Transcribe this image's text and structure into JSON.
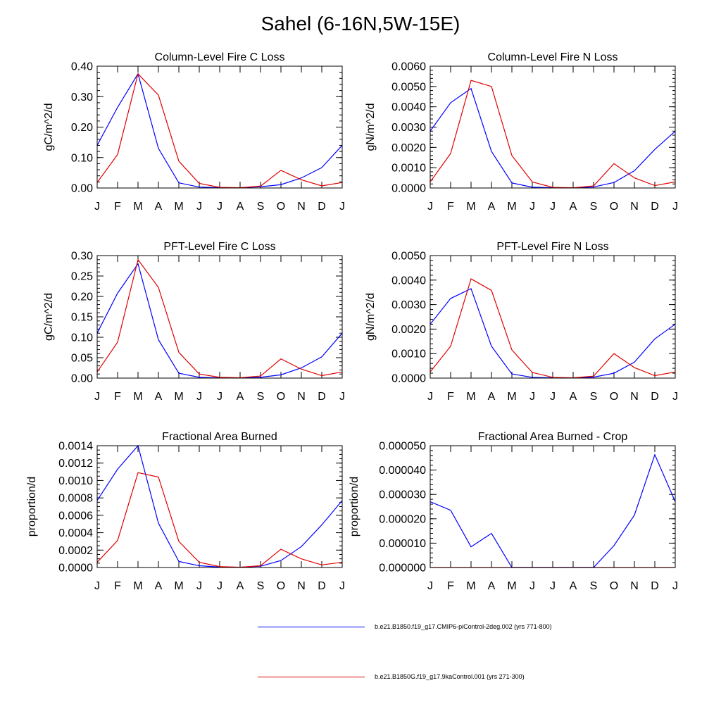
{
  "title": "Sahel (6-16N,5W-15E)",
  "colors": {
    "blue": "#0000ff",
    "red": "#e00000",
    "axis": "#000000"
  },
  "legend": [
    {
      "label": "b.e21.B1850.f19_g17.CMIP6-piControl-2deg.002 (yrs 771-800)",
      "color": "#0000ff"
    },
    {
      "label": "b.e21.B1850G.f19_g17.9kaControl.001 (yrs 271-300)",
      "color": "#e00000"
    }
  ],
  "chart_data": [
    {
      "type": "line",
      "title": "Column-Level Fire C Loss",
      "ylabel": "gC/m^2/d",
      "categories": [
        "J",
        "F",
        "M",
        "A",
        "M",
        "J",
        "J",
        "A",
        "S",
        "O",
        "N",
        "D",
        "J"
      ],
      "ylim": [
        0,
        0.4
      ],
      "yticks": [
        "0.00",
        "0.10",
        "0.20",
        "0.30",
        "0.40"
      ],
      "yminor": 0.02,
      "series": [
        {
          "name": "b.e21.B1850.f19_g17.CMIP6-piControl-2deg.002 (yrs 771-800)",
          "color": "#0000ff",
          "values": [
            0.14,
            0.265,
            0.375,
            0.13,
            0.017,
            0.003,
            0.001,
            0.001,
            0.004,
            0.011,
            0.033,
            0.067,
            0.14
          ]
        },
        {
          "name": "b.e21.B1850G.f19_g17.9kaControl.001 (yrs 271-300)",
          "color": "#e00000",
          "values": [
            0.018,
            0.11,
            0.375,
            0.305,
            0.088,
            0.015,
            0.002,
            0.001,
            0.006,
            0.058,
            0.027,
            0.007,
            0.018
          ]
        }
      ]
    },
    {
      "type": "line",
      "title": "Column-Level Fire N Loss",
      "ylabel": "gN/m^2/d",
      "categories": [
        "J",
        "F",
        "M",
        "A",
        "M",
        "J",
        "J",
        "A",
        "S",
        "O",
        "N",
        "D",
        "J"
      ],
      "ylim": [
        0,
        0.006
      ],
      "yticks": [
        "0.0000",
        "0.0010",
        "0.0020",
        "0.0030",
        "0.0040",
        "0.0050",
        "0.0060"
      ],
      "yminor": 0.0002,
      "series": [
        {
          "name": "b.e21.B1850.f19_g17.CMIP6-piControl-2deg.002 (yrs 771-800)",
          "color": "#0000ff",
          "values": [
            0.0028,
            0.0042,
            0.0049,
            0.0018,
            0.00025,
            4e-05,
            1e-05,
            1e-05,
            5e-05,
            0.00027,
            0.00085,
            0.0019,
            0.0028
          ]
        },
        {
          "name": "b.e21.B1850G.f19_g17.9kaControl.001 (yrs 271-300)",
          "color": "#e00000",
          "values": [
            0.0003,
            0.0017,
            0.0053,
            0.005,
            0.0016,
            0.0003,
            3e-05,
            1e-05,
            0.0001,
            0.0012,
            0.0005,
            0.00012,
            0.0003
          ]
        }
      ]
    },
    {
      "type": "line",
      "title": "PFT-Level Fire C Loss",
      "ylabel": "gC/m^2/d",
      "categories": [
        "J",
        "F",
        "M",
        "A",
        "M",
        "J",
        "J",
        "A",
        "S",
        "O",
        "N",
        "D",
        "J"
      ],
      "ylim": [
        0,
        0.3
      ],
      "yticks": [
        "0.00",
        "0.05",
        "0.10",
        "0.15",
        "0.20",
        "0.25",
        "0.30"
      ],
      "yminor": 0.01,
      "series": [
        {
          "name": "b.e21.B1850.f19_g17.CMIP6-piControl-2deg.002 (yrs 771-800)",
          "color": "#0000ff",
          "values": [
            0.11,
            0.208,
            0.28,
            0.094,
            0.012,
            0.002,
            0.0005,
            0.0005,
            0.002,
            0.008,
            0.025,
            0.052,
            0.11
          ]
        },
        {
          "name": "b.e21.B1850G.f19_g17.9kaControl.001 (yrs 271-300)",
          "color": "#e00000",
          "values": [
            0.015,
            0.088,
            0.29,
            0.222,
            0.063,
            0.01,
            0.002,
            0.001,
            0.005,
            0.047,
            0.022,
            0.006,
            0.015
          ]
        }
      ]
    },
    {
      "type": "line",
      "title": "PFT-Level Fire N Loss",
      "ylabel": "gN/m^2/d",
      "categories": [
        "J",
        "F",
        "M",
        "A",
        "M",
        "J",
        "J",
        "A",
        "S",
        "O",
        "N",
        "D",
        "J"
      ],
      "ylim": [
        0,
        0.005
      ],
      "yticks": [
        "0.0000",
        "0.0010",
        "0.0020",
        "0.0030",
        "0.0040",
        "0.0050"
      ],
      "yminor": 0.0002,
      "series": [
        {
          "name": "b.e21.B1850.f19_g17.CMIP6-piControl-2deg.002 (yrs 771-800)",
          "color": "#0000ff",
          "values": [
            0.0022,
            0.00325,
            0.00365,
            0.0013,
            0.00017,
            3e-05,
            1e-05,
            1e-05,
            4e-05,
            0.0002,
            0.00065,
            0.0016,
            0.0022
          ]
        },
        {
          "name": "b.e21.B1850G.f19_g17.9kaControl.001 (yrs 271-300)",
          "color": "#e00000",
          "values": [
            0.00025,
            0.0013,
            0.00405,
            0.00358,
            0.00115,
            0.00023,
            3e-05,
            1e-05,
            8e-05,
            0.001,
            0.00043,
            0.0001,
            0.00025
          ]
        }
      ]
    },
    {
      "type": "line",
      "title": "Fractional Area Burned",
      "ylabel": "proportion/d",
      "categories": [
        "J",
        "F",
        "M",
        "A",
        "M",
        "J",
        "J",
        "A",
        "S",
        "O",
        "N",
        "D",
        "J"
      ],
      "ylim": [
        0,
        0.0014
      ],
      "yticks": [
        "0.0000",
        "0.0002",
        "0.0004",
        "0.0006",
        "0.0008",
        "0.0010",
        "0.0012",
        "0.0014"
      ],
      "yminor": 5e-05,
      "series": [
        {
          "name": "b.e21.B1850.f19_g17.CMIP6-piControl-2deg.002 (yrs 771-800)",
          "color": "#0000ff",
          "values": [
            0.00077,
            0.00113,
            0.0014,
            0.00051,
            7e-05,
            2e-05,
            5e-06,
            3e-06,
            1.5e-05,
            8e-05,
            0.00024,
            0.00049,
            0.00077
          ]
        },
        {
          "name": "b.e21.B1850G.f19_g17.9kaControl.001 (yrs 271-300)",
          "color": "#e00000",
          "values": [
            6e-05,
            0.00031,
            0.00109,
            0.00104,
            0.0003,
            6e-05,
            1e-05,
            3e-06,
            2e-05,
            0.00021,
            0.0001,
            3e-05,
            6e-05
          ]
        }
      ]
    },
    {
      "type": "line",
      "title": "Fractional Area Burned - Crop",
      "ylabel": "proportion/d",
      "categories": [
        "J",
        "F",
        "M",
        "A",
        "M",
        "J",
        "J",
        "A",
        "S",
        "O",
        "N",
        "D",
        "J"
      ],
      "ylim": [
        0,
        5e-05
      ],
      "yticks": [
        "0.000000",
        "0.000010",
        "0.000020",
        "0.000030",
        "0.000040",
        "0.000050"
      ],
      "yminor": 2e-06,
      "series": [
        {
          "name": "b.e21.B1850.f19_g17.CMIP6-piControl-2deg.002 (yrs 771-800)",
          "color": "#0000ff",
          "values": [
            2.7e-05,
            2.35e-05,
            8.5e-06,
            1.4e-05,
            0,
            0,
            0,
            0,
            0,
            9e-06,
            2.15e-05,
            4.63e-05,
            2.7e-05
          ]
        },
        {
          "name": "b.e21.B1850G.f19_g17.9kaControl.001 (yrs 271-300)",
          "color": "#e00000",
          "values": [
            0,
            0,
            0,
            0,
            0,
            0,
            0,
            0,
            0,
            0,
            0,
            0,
            0
          ]
        }
      ]
    }
  ]
}
